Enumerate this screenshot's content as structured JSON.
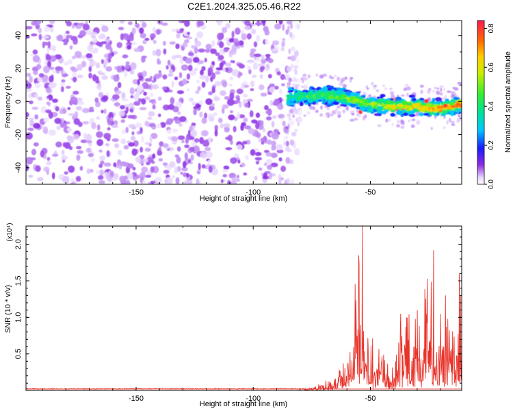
{
  "title": "C2E1.2024.325.05.46.R22",
  "chart_data": [
    {
      "type": "heatmap",
      "xlabel": "Height of straight line (km)",
      "ylabel": "Frequency (Hz)",
      "xlim": [
        -197,
        -11
      ],
      "ylim": [
        -50,
        49
      ],
      "xticks": [
        -150,
        -100,
        -50
      ],
      "xtick_labels": [
        "-150",
        "-100",
        "-50"
      ],
      "yticks": [
        -40,
        -20,
        0,
        20,
        40
      ],
      "ytick_labels": [
        "-40",
        "-20",
        "0",
        "20",
        "40"
      ],
      "colorbar": {
        "label": "Normalized spectral amplitude",
        "range": [
          0.0,
          0.84
        ],
        "ticks": [
          0.0,
          0.2,
          0.4,
          0.6,
          0.8
        ],
        "tick_labels": [
          "0.0",
          "0.2",
          "0.4",
          "0.6",
          "0.8"
        ],
        "colormap": "rainbow (white-violet-blue-cyan-green-yellow-orange-red)"
      },
      "regions": [
        {
          "name": "noise",
          "x_range": [
            -197,
            -80
          ],
          "freq_range": [
            -50,
            49
          ],
          "amplitude_range": [
            0.02,
            0.1
          ]
        },
        {
          "name": "signal",
          "x_range": [
            -85,
            -11
          ],
          "amplitude_range": [
            0.1,
            0.84
          ]
        }
      ],
      "signal_center": {
        "x": [
          -85,
          -80,
          -70,
          -60,
          -50,
          -45,
          -40,
          -35,
          -30,
          -25,
          -20,
          -15,
          -11
        ],
        "freq": [
          2,
          3,
          4,
          2,
          -2,
          -2,
          -3,
          -3,
          -3,
          -4,
          -4,
          -3,
          -1
        ]
      },
      "grid": false
    },
    {
      "type": "line",
      "xlabel": "Height of straight line (km)",
      "ylabel": "SNR (10 * v/v)",
      "y_multiplier": "(x10⁴)",
      "xlim": [
        -197,
        -11
      ],
      "ylim": [
        0,
        2.25
      ],
      "xticks": [
        -150,
        -100,
        -50
      ],
      "xtick_labels": [
        "-150",
        "-100",
        "-50"
      ],
      "yticks": [
        0.5,
        1.0,
        1.5,
        2.0
      ],
      "ytick_labels": [
        "0.5",
        "1.0",
        "1.5",
        "2.0"
      ],
      "color": "#e8332a",
      "grid": false,
      "envelope": {
        "x": [
          -197,
          -80,
          -74,
          -70,
          -65,
          -60,
          -57,
          -54,
          -52,
          -50,
          -48,
          -45,
          -42,
          -40,
          -37,
          -34,
          -31,
          -28,
          -25,
          -22,
          -19,
          -16,
          -13,
          -11
        ],
        "y_max": [
          0.02,
          0.03,
          0.05,
          0.12,
          0.2,
          0.45,
          1.4,
          2.25,
          1.0,
          0.9,
          0.7,
          0.55,
          0.35,
          0.3,
          1.0,
          1.1,
          1.0,
          1.2,
          1.9,
          0.8,
          1.3,
          1.2,
          1.0,
          1.6
        ]
      },
      "peaks": [
        {
          "x": -53.5,
          "y": 2.25
        },
        {
          "x": -55,
          "y": 1.85
        },
        {
          "x": -23,
          "y": 1.92
        },
        {
          "x": -37,
          "y": 1.05
        },
        {
          "x": -30,
          "y": 1.1
        },
        {
          "x": -18,
          "y": 1.3
        },
        {
          "x": -12,
          "y": 1.6
        }
      ]
    }
  ]
}
